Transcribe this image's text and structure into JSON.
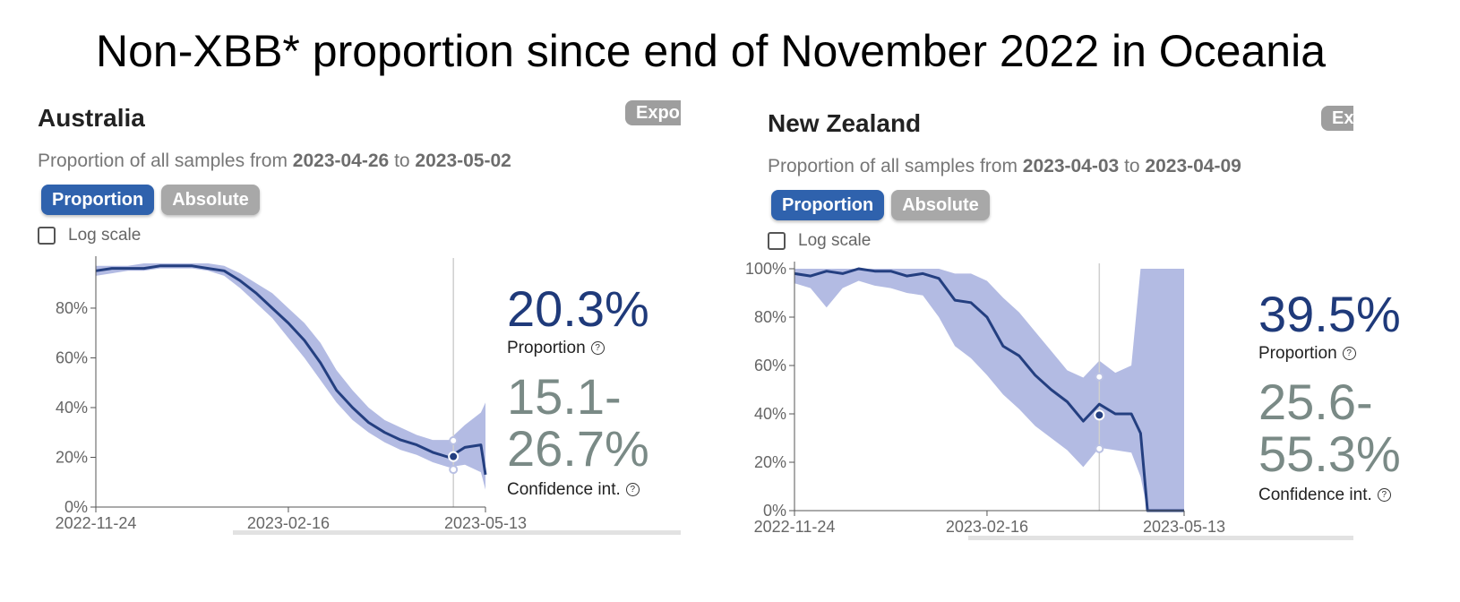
{
  "page_title": "Non-XBB* proportion since end of November 2022 in Oceania",
  "export_label": "Export",
  "toggle_labels": {
    "proportion": "Proportion",
    "absolute": "Absolute"
  },
  "log_scale_label": "Log scale",
  "colors": {
    "line": "#243f80",
    "band": "#b3bbe3",
    "active_toggle": "#2f62ad",
    "inactive_toggle": "#a8a8a8"
  },
  "panels": {
    "australia": {
      "title": "Australia",
      "subtitle_prefix": "Proportion of all samples from",
      "date_from": "2023-04-26",
      "subtitle_to": "to",
      "date_to": "2023-05-02",
      "proportion_value": "20.3%",
      "proportion_label": "Proportion",
      "ci_value": "15.1-26.7%",
      "ci_label": "Confidence int.",
      "log_scale_checked": false,
      "active_mode": "Proportion"
    },
    "new_zealand": {
      "title": "New Zealand",
      "subtitle_prefix": "Proportion of all samples from",
      "date_from": "2023-04-03",
      "subtitle_to": "to",
      "date_to": "2023-04-09",
      "proportion_value": "39.5%",
      "proportion_label": "Proportion",
      "ci_value": "25.6-55.3%",
      "ci_label": "Confidence int.",
      "log_scale_checked": false,
      "active_mode": "Proportion"
    }
  },
  "chart_data": [
    {
      "type": "area",
      "title": "Australia",
      "xlabel": "",
      "ylabel": "",
      "x_ticks": [
        "2022-11-24",
        "2023-02-16",
        "2023-05-13"
      ],
      "y_ticks": [
        "0%",
        "20%",
        "40%",
        "60%",
        "80%"
      ],
      "ylim": [
        0,
        98
      ],
      "x": [
        "2022-11-24",
        "2022-12-01",
        "2022-12-08",
        "2022-12-15",
        "2022-12-22",
        "2022-12-29",
        "2023-01-05",
        "2023-01-12",
        "2023-01-19",
        "2023-01-26",
        "2023-02-02",
        "2023-02-09",
        "2023-02-16",
        "2023-02-23",
        "2023-03-02",
        "2023-03-09",
        "2023-03-16",
        "2023-03-23",
        "2023-03-30",
        "2023-04-06",
        "2023-04-13",
        "2023-04-20",
        "2023-04-27",
        "2023-05-04",
        "2023-05-11",
        "2023-05-13"
      ],
      "series": [
        {
          "name": "Proportion",
          "values": [
            95,
            96,
            96,
            96,
            97,
            97,
            97,
            96,
            95,
            91,
            86,
            80,
            74,
            67,
            58,
            47,
            40,
            34,
            30,
            27,
            25,
            22,
            20,
            24,
            25,
            13
          ]
        },
        {
          "name": "CI lower",
          "values": [
            93,
            94,
            95,
            95,
            96,
            96,
            96,
            95,
            93,
            88,
            82,
            76,
            68,
            60,
            51,
            42,
            35,
            30,
            26,
            23,
            21,
            18,
            16,
            17,
            14,
            7
          ]
        },
        {
          "name": "CI upper",
          "values": [
            97,
            97,
            97,
            98,
            98,
            98,
            98,
            98,
            97,
            94,
            90,
            86,
            80,
            74,
            66,
            55,
            47,
            40,
            35,
            32,
            29,
            27,
            27,
            33,
            38,
            42
          ]
        }
      ],
      "highlight": {
        "x": "2023-04-29",
        "value": 20.3,
        "ci": [
          15.1,
          26.7
        ]
      }
    },
    {
      "type": "area",
      "title": "New Zealand",
      "xlabel": "",
      "ylabel": "",
      "x_ticks": [
        "2022-11-24",
        "2023-02-16",
        "2023-05-13"
      ],
      "y_ticks": [
        "0%",
        "20%",
        "40%",
        "60%",
        "80%",
        "100%"
      ],
      "ylim": [
        0,
        100
      ],
      "x": [
        "2022-11-24",
        "2022-12-01",
        "2022-12-08",
        "2022-12-15",
        "2022-12-22",
        "2022-12-29",
        "2023-01-05",
        "2023-01-12",
        "2023-01-19",
        "2023-01-26",
        "2023-02-02",
        "2023-02-09",
        "2023-02-16",
        "2023-02-23",
        "2023-03-02",
        "2023-03-09",
        "2023-03-16",
        "2023-03-23",
        "2023-03-30",
        "2023-04-06",
        "2023-04-13",
        "2023-04-20",
        "2023-04-24",
        "2023-04-27",
        "2023-05-04",
        "2023-05-13"
      ],
      "series": [
        {
          "name": "Proportion",
          "values": [
            98,
            97,
            99,
            98,
            100,
            99,
            99,
            97,
            98,
            96,
            87,
            86,
            80,
            68,
            64,
            56,
            50,
            45,
            37,
            44,
            40,
            40,
            32,
            0,
            0,
            0
          ]
        },
        {
          "name": "CI lower",
          "values": [
            94,
            92,
            84,
            92,
            95,
            93,
            92,
            90,
            89,
            80,
            68,
            63,
            56,
            48,
            42,
            35,
            30,
            25,
            18,
            26,
            25,
            24,
            14,
            0,
            0,
            0
          ]
        },
        {
          "name": "CI upper",
          "values": [
            100,
            100,
            100,
            100,
            100,
            100,
            100,
            100,
            100,
            100,
            98,
            98,
            95,
            88,
            82,
            74,
            66,
            58,
            55,
            62,
            57,
            60,
            100,
            100,
            100,
            100
          ]
        }
      ],
      "highlight": {
        "x": "2023-04-06",
        "value": 39.5,
        "ci": [
          25.6,
          55.3
        ]
      }
    }
  ]
}
